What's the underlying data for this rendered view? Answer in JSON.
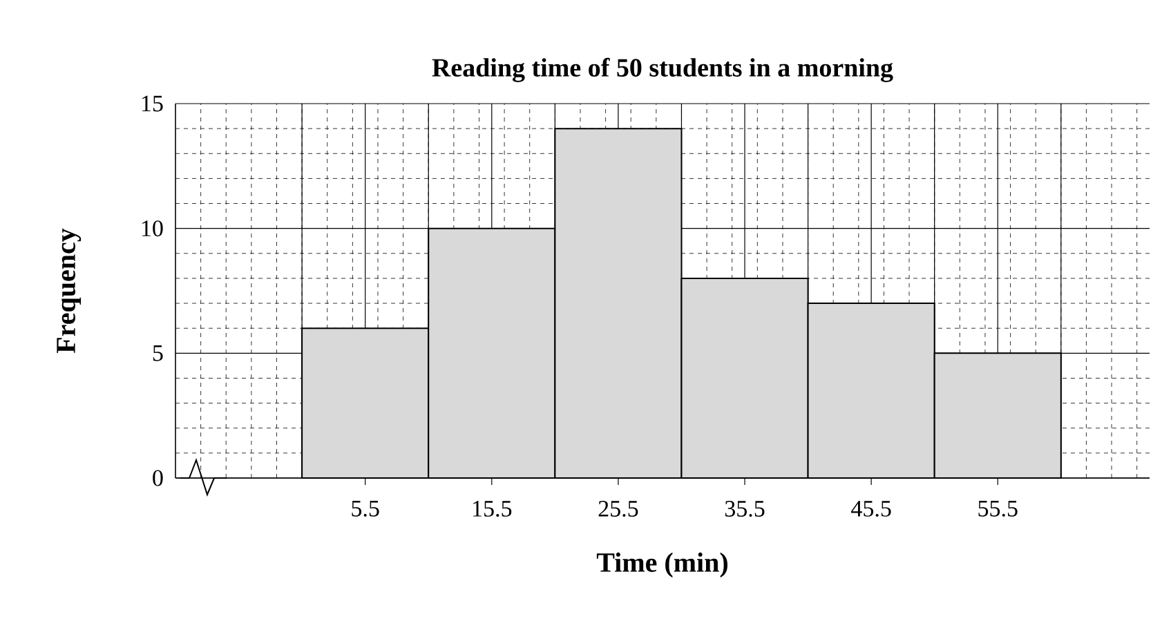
{
  "chart_data": {
    "type": "histogram",
    "title": "Reading time of 50 students in a morning",
    "xlabel": "Time (min)",
    "ylabel": "Frequency",
    "bins": [
      0.5,
      10.5,
      20.5,
      30.5,
      40.5,
      50.5,
      60.5
    ],
    "values": [
      6,
      10,
      14,
      8,
      7,
      5
    ],
    "color": "#d9d9d9",
    "xlim": [
      -9.5,
      67.5
    ],
    "ylim": [
      0,
      15
    ],
    "xticks": [
      5.5,
      15.5,
      25.5,
      35.5,
      45.5,
      55.5
    ],
    "yticks": [
      0,
      5,
      10,
      15
    ],
    "grid": true
  }
}
